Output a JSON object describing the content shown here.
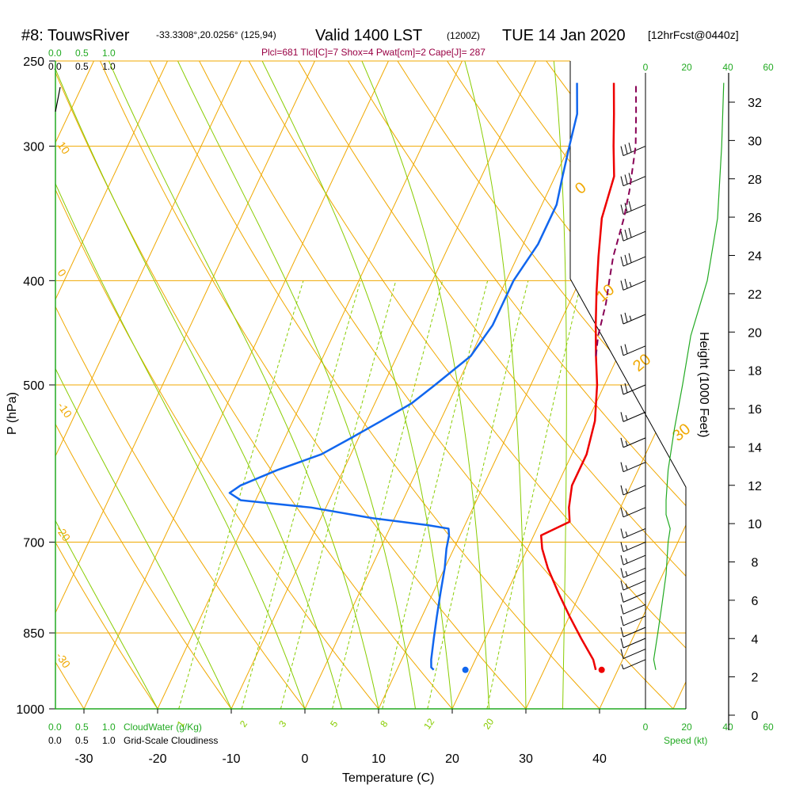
{
  "header": {
    "station": "#8: TouwsRiver",
    "coords": "-33.3308°,20.0256° (125,94)",
    "valid": "Valid 1400 LST",
    "zulu": "(1200Z)",
    "date": "TUE 14 Jan 2020",
    "forecast": "[12hrFcst@0440z]"
  },
  "params_line": "Plcl=681 Tlcl[C]=7 Shox=4 Pwat[cm]=2 Cape[J]= 287",
  "legends": {
    "cloudwater_label": "CloudWater (g/Kg)",
    "cloudiness_label": "Grid-Scale Cloudiness",
    "scale_values": [
      "0.0",
      "0.5",
      "1.0"
    ],
    "speed_label": "Speed (kt)",
    "speed_ticks": [
      "0",
      "20",
      "40",
      "60"
    ]
  },
  "colors": {
    "isotherm": "#f0a800",
    "dry_adiabat": "#f0a800",
    "moist_adiabat": "#88cc00",
    "mixing_ratio": "#88cc00",
    "temperature": "#ee0000",
    "dewpoint": "#1166ee",
    "parcel": "#880055",
    "wind_speed": "#22aa22",
    "cloud": "#22aa22"
  },
  "chart_data": {
    "type": "line",
    "title": "",
    "xlabel": "Temperature (C)",
    "ylabel": "P (hPa)",
    "right_label": "Height (1000 Feet)",
    "x_ticks": [
      -30,
      -20,
      -10,
      0,
      10,
      20,
      30,
      40
    ],
    "p_ticks": [
      250,
      300,
      400,
      500,
      700,
      850,
      1000
    ],
    "height_ticks": [
      0,
      2,
      4,
      6,
      8,
      10,
      12,
      14,
      16,
      18,
      20,
      22,
      24,
      26,
      28,
      30,
      32
    ],
    "mixing_ratio_labels": [
      "1",
      "2",
      "3",
      "5",
      "8",
      "12",
      "20"
    ],
    "dry_adiabat_labels": [
      "0",
      "10",
      "20",
      "30"
    ],
    "left_edge_labels": [
      "10",
      "0",
      "-10",
      "-20",
      "-30"
    ],
    "series": [
      {
        "name": "",
        "p": [
          920,
          900,
          860,
          820,
          780,
          740,
          710,
          690,
          670,
          650,
          620,
          580,
          540,
          500,
          470,
          440,
          410,
          380,
          350,
          320,
          300,
          280,
          262
        ],
        "t": [
          37,
          36,
          33,
          30,
          27,
          24,
          22,
          21,
          24,
          23,
          22,
          22,
          21,
          19,
          17,
          15,
          13,
          11,
          9,
          8,
          6,
          4,
          2
        ]
      },
      {
        "name": "",
        "p": [
          920,
          915,
          900,
          860,
          820,
          780,
          740,
          710,
          690,
          680,
          675,
          665,
          650,
          640,
          630,
          620,
          600,
          580,
          560,
          540,
          520,
          500,
          470,
          440,
          420,
          400,
          370,
          340,
          320,
          300,
          280,
          262
        ],
        "t": [
          15,
          14.5,
          14,
          13,
          12,
          11,
          10,
          9,
          8.5,
          8,
          5,
          -3,
          -12,
          -22,
          -24,
          -23,
          -19,
          -14,
          -11,
          -8,
          -5,
          -3,
          0,
          1,
          1,
          1,
          2,
          2,
          1,
          0,
          -1,
          -3
        ]
      },
      {
        "name": "",
        "p": [
          470,
          450,
          420,
          400,
          380,
          350,
          330,
          300,
          280,
          262
        ],
        "t": [
          17,
          16,
          15,
          14,
          13,
          12,
          11,
          9,
          7,
          5
        ]
      }
    ],
    "surface_temp": {
      "p": 920,
      "t": 37.8
    },
    "surface_dewpoint": {
      "p": 920,
      "t": 19.3
    },
    "wind_barbs": [
      {
        "p": 300,
        "kt": 30
      },
      {
        "p": 320,
        "kt": 30
      },
      {
        "p": 340,
        "kt": 30
      },
      {
        "p": 360,
        "kt": 30
      },
      {
        "p": 380,
        "kt": 30
      },
      {
        "p": 400,
        "kt": 25
      },
      {
        "p": 430,
        "kt": 25
      },
      {
        "p": 460,
        "kt": 20
      },
      {
        "p": 500,
        "kt": 20
      },
      {
        "p": 530,
        "kt": 15
      },
      {
        "p": 560,
        "kt": 15
      },
      {
        "p": 590,
        "kt": 15
      },
      {
        "p": 620,
        "kt": 15
      },
      {
        "p": 650,
        "kt": 15
      },
      {
        "p": 680,
        "kt": 15
      },
      {
        "p": 700,
        "kt": 15
      },
      {
        "p": 720,
        "kt": 15
      },
      {
        "p": 740,
        "kt": 15
      },
      {
        "p": 760,
        "kt": 15
      },
      {
        "p": 780,
        "kt": 10
      },
      {
        "p": 800,
        "kt": 10
      },
      {
        "p": 820,
        "kt": 10
      },
      {
        "p": 840,
        "kt": 10
      },
      {
        "p": 860,
        "kt": 10
      },
      {
        "p": 880,
        "kt": 10
      },
      {
        "p": 900,
        "kt": 5
      }
    ],
    "wind_speed_profile": {
      "p": [
        262,
        300,
        350,
        400,
        450,
        500,
        550,
        600,
        640,
        660,
        680,
        700,
        750,
        800,
        850,
        900,
        920
      ],
      "kt": [
        38,
        37,
        35,
        30,
        22,
        18,
        14,
        11,
        10,
        10,
        12,
        11,
        10,
        8,
        6,
        4,
        5
      ]
    }
  }
}
